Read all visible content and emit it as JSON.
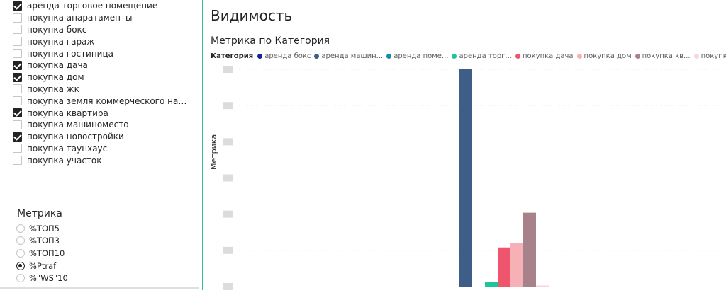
{
  "filter": {
    "categories": [
      {
        "label": "аренда торговое помещение",
        "checked": true
      },
      {
        "label": "покупка апаратаменты",
        "checked": false
      },
      {
        "label": "покупка бокс",
        "checked": false
      },
      {
        "label": "покупка гараж",
        "checked": false
      },
      {
        "label": "покупка гостиница",
        "checked": false
      },
      {
        "label": "покупка дача",
        "checked": true
      },
      {
        "label": "покупка дом",
        "checked": true
      },
      {
        "label": "покупка жк",
        "checked": false
      },
      {
        "label": "покупка земля коммерческого назначе...",
        "checked": false
      },
      {
        "label": "покупка квартира",
        "checked": true
      },
      {
        "label": "покупка машиноместо",
        "checked": false
      },
      {
        "label": "покупка новостройки",
        "checked": true
      },
      {
        "label": "покупка таунхаус",
        "checked": false
      },
      {
        "label": "покупка участок",
        "checked": false
      }
    ],
    "metric_title": "Метрика",
    "metrics": [
      {
        "label": "%ТОП5",
        "selected": false
      },
      {
        "label": "%ТОП3",
        "selected": false
      },
      {
        "label": "%ТОП10",
        "selected": false
      },
      {
        "label": "%Ptraf",
        "selected": true
      },
      {
        "label": "%\"WS\"10",
        "selected": false
      }
    ]
  },
  "visual": {
    "title": "Видимость",
    "chart_title": "Метрика по Категория",
    "accent_divider_color": "#2fbf9b"
  },
  "chart_data": {
    "type": "bar",
    "title": "Метрика по Категория",
    "ylabel": "Метрика",
    "xlabel": "",
    "legend_title": "Категория",
    "legend_position": "top-left",
    "grid": true,
    "ylim": [
      0,
      100
    ],
    "series": [
      {
        "name": "аренда бокс",
        "color": "#12239e",
        "value": 0
      },
      {
        "name": "аренда машин...",
        "color": "#3e5d87",
        "value": 100
      },
      {
        "name": "аренда поме...",
        "color": "#118dab",
        "value": 0
      },
      {
        "name": "аренда торг...",
        "color": "#1ec4a0",
        "value": 2
      },
      {
        "name": "покупка дача",
        "color": "#f0556e",
        "value": 18
      },
      {
        "name": "покупка дом",
        "color": "#f5b1b6",
        "value": 20
      },
      {
        "name": "покупка кв...",
        "color": "#a7828b",
        "value": 34
      },
      {
        "name": "покупка н...",
        "color": "#f8d4df",
        "value": 0.5
      }
    ]
  }
}
